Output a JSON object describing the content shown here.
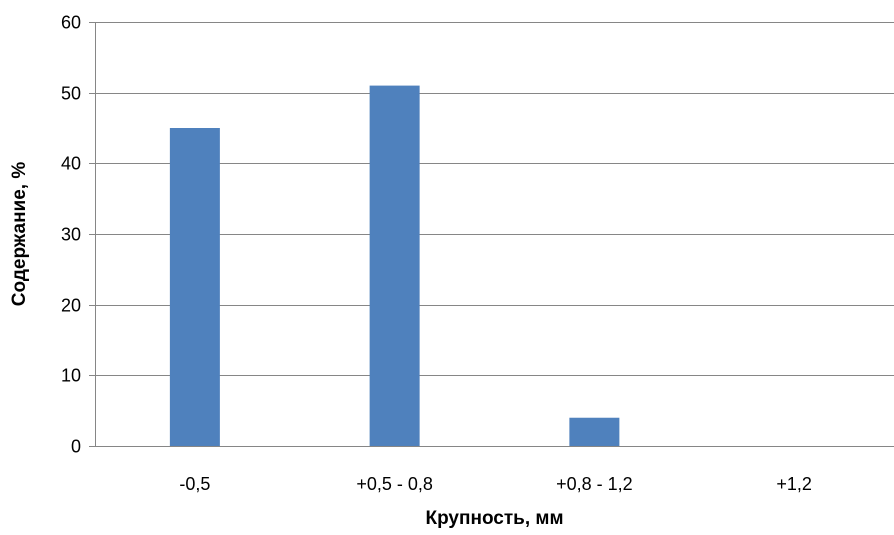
{
  "chart_data": {
    "type": "bar",
    "title": "",
    "xlabel": "Крупность, мм",
    "ylabel": "Содержание, %",
    "categories": [
      "-0,5",
      "+0,5 - 0,8",
      "+0,8 - 1,2",
      "+1,2"
    ],
    "values": [
      45,
      51,
      4,
      0
    ],
    "ylim": [
      0,
      60
    ],
    "yticks": [
      0,
      10,
      20,
      30,
      40,
      50,
      60
    ],
    "grid": true,
    "legend": "none",
    "bar_color": "#4F81BD",
    "grid_color": "#868686",
    "axis_color": "#868686"
  }
}
